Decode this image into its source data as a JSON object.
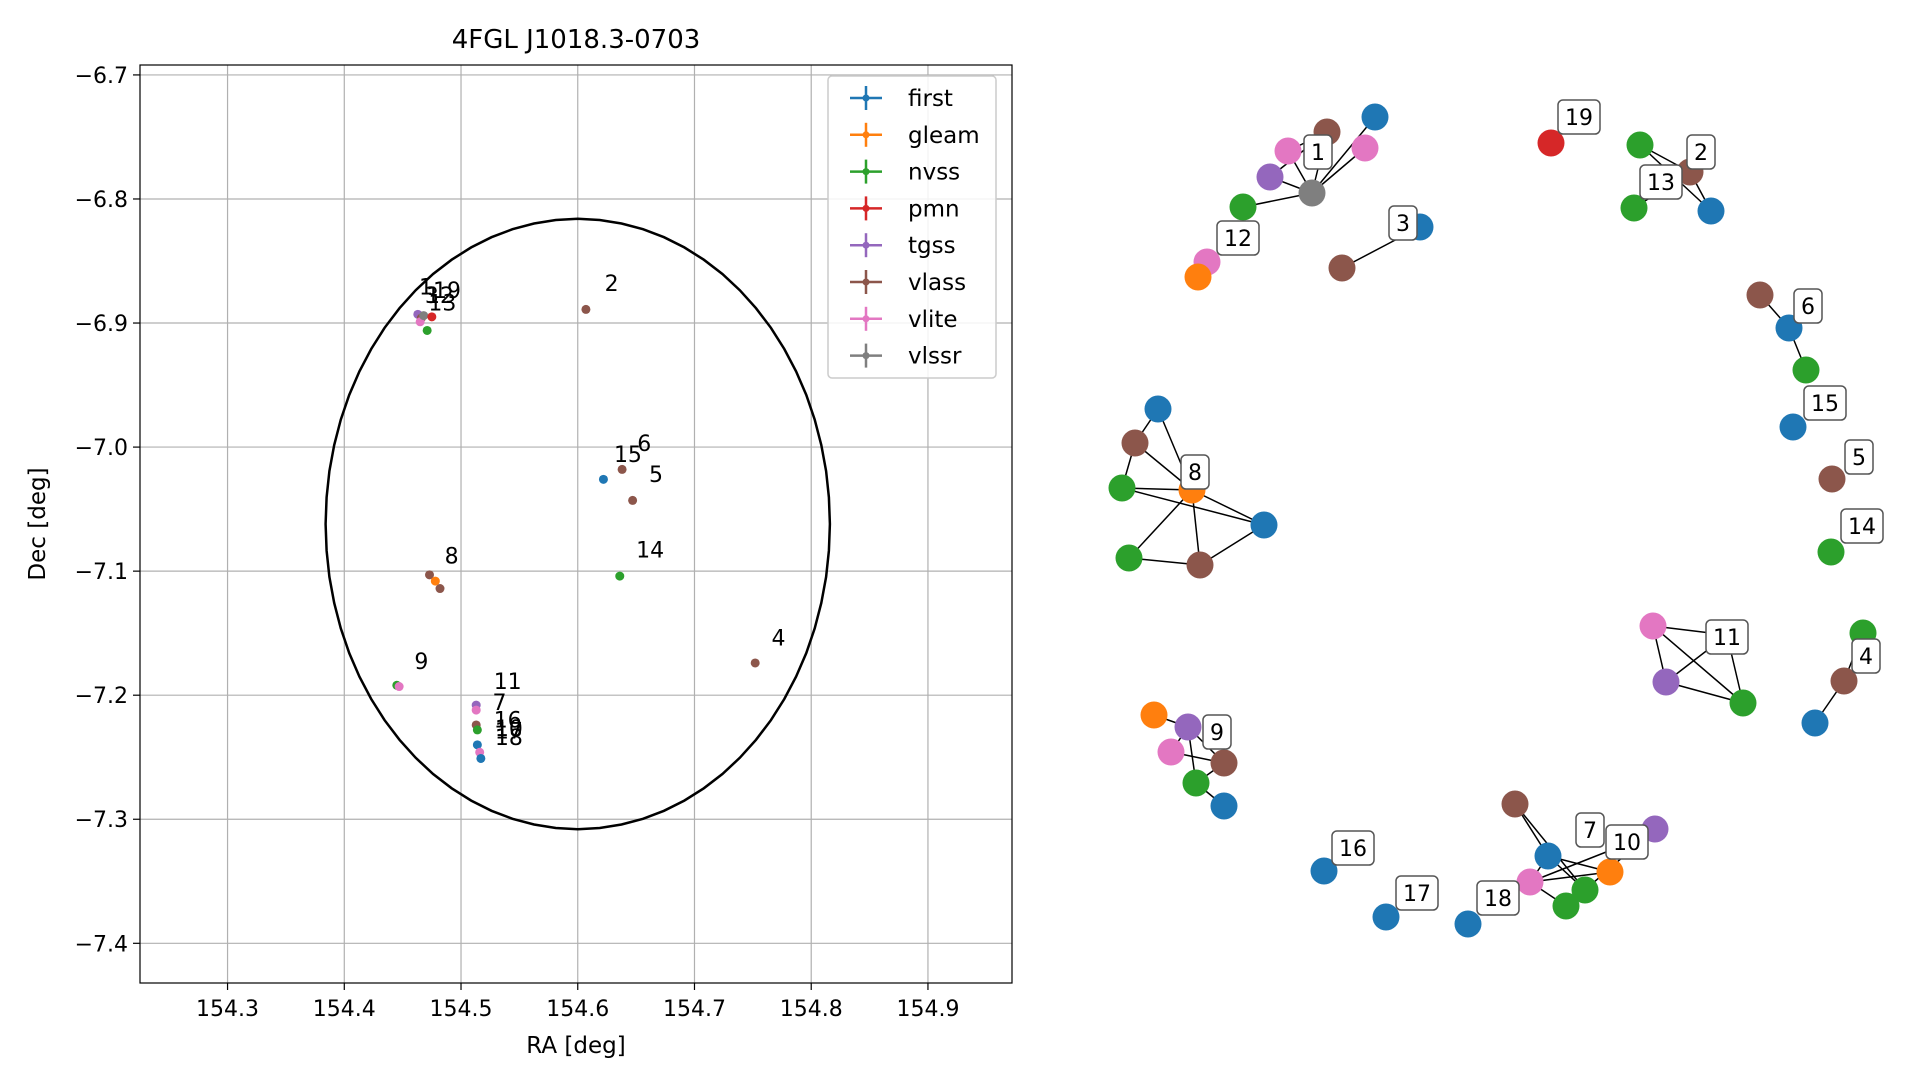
{
  "chart_data": [
    {
      "type": "scatter",
      "title": "4FGL J1018.3-0703",
      "xlabel": "RA [deg]",
      "ylabel": "Dec [deg]",
      "xlim": [
        154.225,
        154.972
      ],
      "ylim": [
        -7.432,
        -6.692
      ],
      "xticks": [
        154.3,
        154.4,
        154.5,
        154.6,
        154.7,
        154.8,
        154.9
      ],
      "yticks": [
        -6.7,
        -6.8,
        -6.9,
        -7.0,
        -7.1,
        -7.2,
        -7.3,
        -7.4
      ],
      "xtick_labels": [
        "154.3",
        "154.4",
        "154.5",
        "154.6",
        "154.7",
        "154.8",
        "154.9"
      ],
      "ytick_labels": [
        "−6.7",
        "−6.8",
        "−6.9",
        "−7.0",
        "−7.1",
        "−7.2",
        "−7.3",
        "−7.4"
      ],
      "grid": true,
      "legend_position": "top-right",
      "ellipse": {
        "center": [
          154.6,
          -7.062
        ],
        "ra_radius": 0.216,
        "dec_radius": 0.246
      },
      "legend": [
        {
          "name": "first",
          "color": "#1f77b4"
        },
        {
          "name": "gleam",
          "color": "#ff7f0e"
        },
        {
          "name": "nvss",
          "color": "#2ca02c"
        },
        {
          "name": "pmn",
          "color": "#d62728"
        },
        {
          "name": "tgss",
          "color": "#9467bd"
        },
        {
          "name": "vlass",
          "color": "#8c564b"
        },
        {
          "name": "vlite",
          "color": "#e377c2"
        },
        {
          "name": "vlssr",
          "color": "#7f7f7f"
        }
      ],
      "points": [
        {
          "ra": 154.463,
          "dec": -6.893,
          "color": "#9467bd"
        },
        {
          "ra": 154.466,
          "dec": -6.896,
          "color": "#8c564b"
        },
        {
          "ra": 154.465,
          "dec": -6.899,
          "color": "#e377c2"
        },
        {
          "ra": 154.468,
          "dec": -6.894,
          "color": "#7f7f7f"
        },
        {
          "ra": 154.475,
          "dec": -6.895,
          "color": "#d62728"
        },
        {
          "ra": 154.471,
          "dec": -6.906,
          "color": "#2ca02c"
        },
        {
          "ra": 154.607,
          "dec": -6.889,
          "color": "#8c564b"
        },
        {
          "ra": 154.622,
          "dec": -7.026,
          "color": "#1f77b4"
        },
        {
          "ra": 154.638,
          "dec": -7.018,
          "color": "#8c564b"
        },
        {
          "ra": 154.647,
          "dec": -7.043,
          "color": "#8c564b"
        },
        {
          "ra": 154.636,
          "dec": -7.104,
          "color": "#2ca02c"
        },
        {
          "ra": 154.752,
          "dec": -7.174,
          "color": "#8c564b"
        },
        {
          "ra": 154.473,
          "dec": -7.103,
          "color": "#8c564b"
        },
        {
          "ra": 154.478,
          "dec": -7.108,
          "color": "#ff7f0e"
        },
        {
          "ra": 154.482,
          "dec": -7.114,
          "color": "#8c564b"
        },
        {
          "ra": 154.445,
          "dec": -7.192,
          "color": "#2ca02c"
        },
        {
          "ra": 154.447,
          "dec": -7.193,
          "color": "#e377c2"
        },
        {
          "ra": 154.513,
          "dec": -7.208,
          "color": "#9467bd"
        },
        {
          "ra": 154.513,
          "dec": -7.212,
          "color": "#e377c2"
        },
        {
          "ra": 154.513,
          "dec": -7.224,
          "color": "#8c564b"
        },
        {
          "ra": 154.514,
          "dec": -7.228,
          "color": "#2ca02c"
        },
        {
          "ra": 154.514,
          "dec": -7.24,
          "color": "#1f77b4"
        },
        {
          "ra": 154.516,
          "dec": -7.246,
          "color": "#e377c2"
        },
        {
          "ra": 154.517,
          "dec": -7.251,
          "color": "#1f77b4"
        }
      ],
      "annotations": [
        {
          "text": "1",
          "ra": 154.464,
          "dec": -6.877
        },
        {
          "text": "19",
          "ra": 154.476,
          "dec": -6.88
        },
        {
          "text": "12",
          "ra": 154.47,
          "dec": -6.884
        },
        {
          "text": "3",
          "ra": 154.469,
          "dec": -6.884
        },
        {
          "text": "13",
          "ra": 154.472,
          "dec": -6.89
        },
        {
          "text": "2",
          "ra": 154.623,
          "dec": -6.874
        },
        {
          "text": "15",
          "ra": 154.631,
          "dec": -7.012
        },
        {
          "text": "6",
          "ra": 154.651,
          "dec": -7.003
        },
        {
          "text": "5",
          "ra": 154.661,
          "dec": -7.028
        },
        {
          "text": "14",
          "ra": 154.65,
          "dec": -7.089
        },
        {
          "text": "4",
          "ra": 154.766,
          "dec": -7.16
        },
        {
          "text": "8",
          "ra": 154.486,
          "dec": -7.094
        },
        {
          "text": "9",
          "ra": 154.46,
          "dec": -7.179
        },
        {
          "text": "11",
          "ra": 154.528,
          "dec": -7.195
        },
        {
          "text": "7",
          "ra": 154.527,
          "dec": -7.212
        },
        {
          "text": "16",
          "ra": 154.528,
          "dec": -7.226
        },
        {
          "text": "10",
          "ra": 154.529,
          "dec": -7.233
        },
        {
          "text": "17",
          "ra": 154.529,
          "dec": -7.235
        },
        {
          "text": "18",
          "ra": 154.529,
          "dec": -7.24
        }
      ]
    },
    {
      "type": "network",
      "labels": [
        "1",
        "2",
        "3",
        "4",
        "5",
        "6",
        "7",
        "8",
        "9",
        "10",
        "11",
        "12",
        "13",
        "14",
        "15",
        "16",
        "17",
        "18",
        "19"
      ]
    }
  ]
}
